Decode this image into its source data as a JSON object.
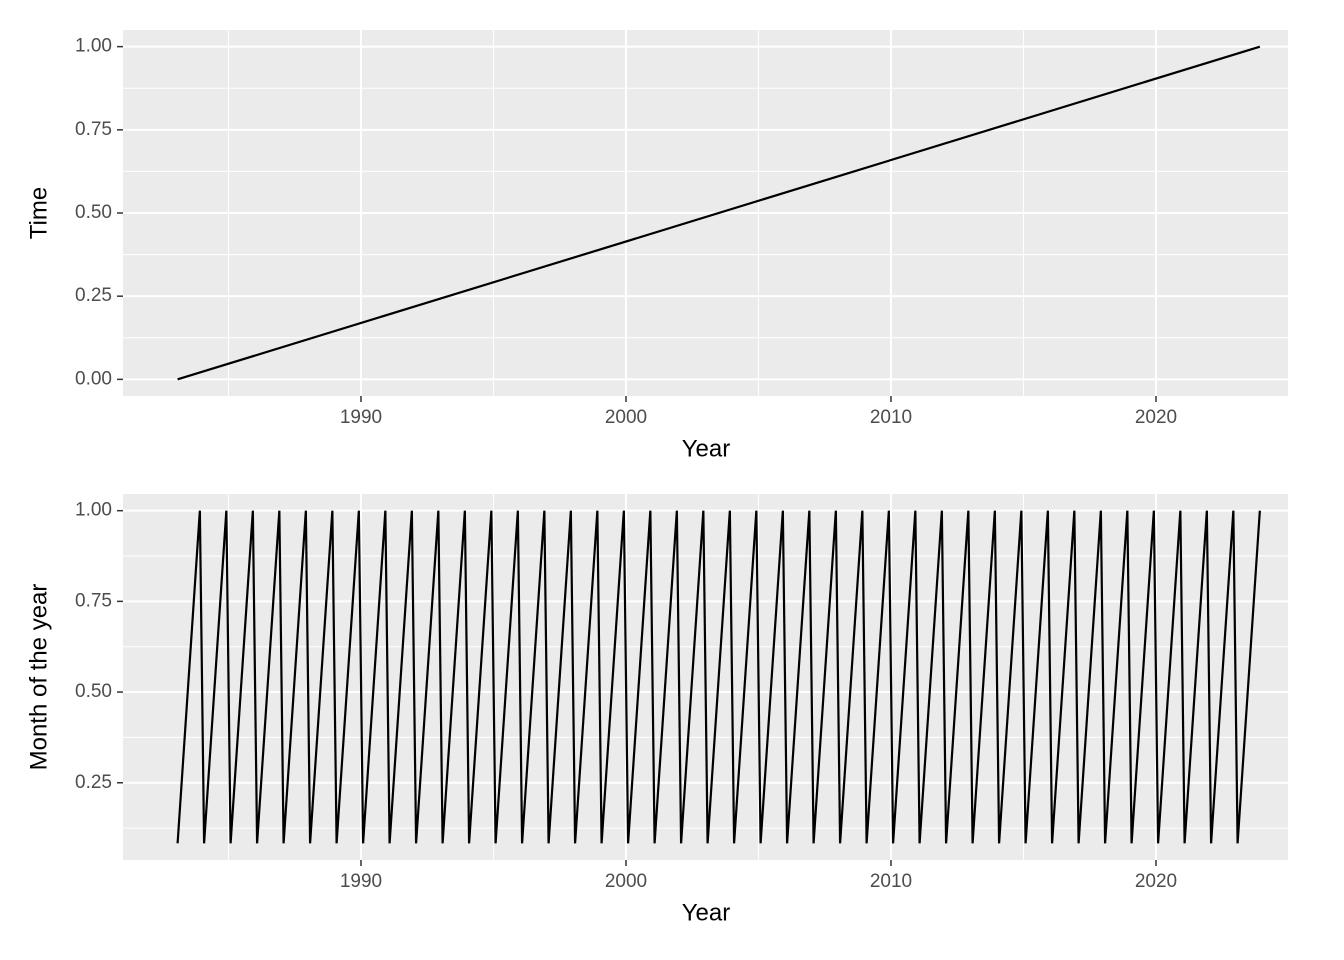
{
  "chart_data": [
    {
      "type": "line",
      "x_label": "Year",
      "y_label": "Time",
      "color": "#000000",
      "grid": true,
      "x": [
        1983.08,
        2023.92
      ],
      "values": [
        0,
        1
      ],
      "xlim": [
        1981.02,
        2025.02
      ],
      "ylim": [
        -0.05,
        1.05
      ],
      "xticks": [
        1990,
        2000,
        2010,
        2020
      ],
      "xminor": [
        1985,
        1995,
        2005,
        2015,
        2025
      ],
      "yticks": [
        {
          "value": 0,
          "label": "0.00"
        },
        {
          "value": 0.25,
          "label": "0.25"
        },
        {
          "value": 0.5,
          "label": "0.50"
        },
        {
          "value": 0.75,
          "label": "0.75"
        },
        {
          "value": 1,
          "label": "1.00"
        }
      ],
      "yminor": [
        0.125,
        0.375,
        0.625,
        0.875
      ]
    },
    {
      "type": "line",
      "x_label": "Year",
      "y_label": "Month of the year",
      "color": "#000000",
      "grid": true,
      "x": [
        1983.08,
        1983.92,
        1984.08,
        1984.92,
        1985.08,
        1985.92,
        1986.08,
        1986.92,
        1987.08,
        1987.92,
        1988.08,
        1988.92,
        1989.08,
        1989.92,
        1990.08,
        1990.92,
        1991.08,
        1991.92,
        1992.08,
        1992.92,
        1993.08,
        1993.92,
        1994.08,
        1994.92,
        1995.08,
        1995.92,
        1996.08,
        1996.92,
        1997.08,
        1997.92,
        1998.08,
        1998.92,
        1999.08,
        1999.92,
        2000.08,
        2000.92,
        2001.08,
        2001.92,
        2002.08,
        2002.92,
        2003.08,
        2003.92,
        2004.08,
        2004.92,
        2005.08,
        2005.92,
        2006.08,
        2006.92,
        2007.08,
        2007.92,
        2008.08,
        2008.92,
        2009.08,
        2009.92,
        2010.08,
        2010.92,
        2011.08,
        2011.92,
        2012.08,
        2012.92,
        2013.08,
        2013.92,
        2014.08,
        2014.92,
        2015.08,
        2015.92,
        2016.08,
        2016.92,
        2017.08,
        2017.92,
        2018.08,
        2018.92,
        2019.08,
        2019.92,
        2020.08,
        2020.92,
        2021.08,
        2021.92,
        2022.08,
        2022.92,
        2023.08,
        2023.92
      ],
      "values": [
        0.083,
        1,
        0.083,
        1,
        0.083,
        1,
        0.083,
        1,
        0.083,
        1,
        0.083,
        1,
        0.083,
        1,
        0.083,
        1,
        0.083,
        1,
        0.083,
        1,
        0.083,
        1,
        0.083,
        1,
        0.083,
        1,
        0.083,
        1,
        0.083,
        1,
        0.083,
        1,
        0.083,
        1,
        0.083,
        1,
        0.083,
        1,
        0.083,
        1,
        0.083,
        1,
        0.083,
        1,
        0.083,
        1,
        0.083,
        1,
        0.083,
        1,
        0.083,
        1,
        0.083,
        1,
        0.083,
        1,
        0.083,
        1,
        0.083,
        1,
        0.083,
        1,
        0.083,
        1,
        0.083,
        1,
        0.083,
        1,
        0.083,
        1,
        0.083,
        1,
        0.083,
        1,
        0.083,
        1,
        0.083,
        1,
        0.083,
        1,
        0.083,
        1
      ],
      "xlim": [
        1981.02,
        2025.02
      ],
      "ylim": [
        0.037,
        1.046
      ],
      "xticks": [
        1990,
        2000,
        2010,
        2020
      ],
      "xminor": [
        1985,
        1995,
        2005,
        2015,
        2025
      ],
      "yticks": [
        {
          "value": 0.25,
          "label": "0.25"
        },
        {
          "value": 0.5,
          "label": "0.50"
        },
        {
          "value": 0.75,
          "label": "0.75"
        },
        {
          "value": 1,
          "label": "1.00"
        }
      ],
      "yminor": [
        0.125,
        0.375,
        0.625,
        0.875
      ]
    }
  ]
}
